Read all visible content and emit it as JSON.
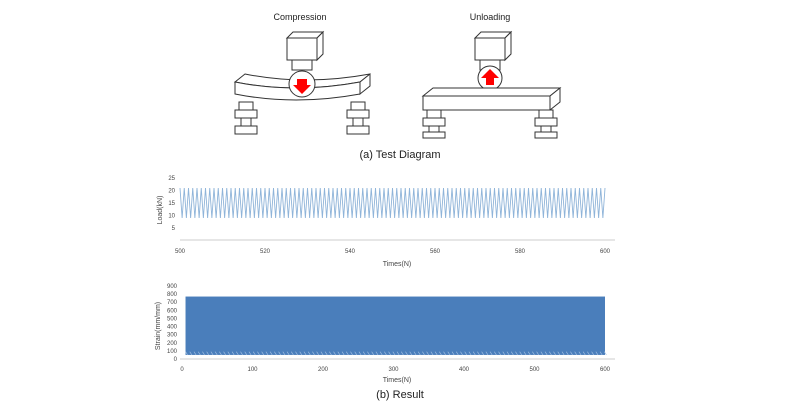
{
  "diagram": {
    "left_label": "Compression",
    "right_label": "Unloading",
    "caption": "(a) Test Diagram",
    "colors": {
      "arrow": "#ff0000",
      "outline": "#333333"
    }
  },
  "result_caption": "(b) Result",
  "chart_data": [
    {
      "type": "line",
      "ylabel": "Load(kN)",
      "xlabel": "Times(N)",
      "xlim": [
        500,
        600
      ],
      "ylim": [
        5,
        25
      ],
      "xticks": [
        500,
        520,
        540,
        560,
        580,
        600
      ],
      "yticks": [
        5,
        10,
        15,
        20,
        25
      ],
      "series": [
        {
          "cycles": 100,
          "min": 9,
          "max": 21,
          "color": "#8fb4d9"
        }
      ],
      "grid": false
    },
    {
      "type": "area",
      "ylabel": "Strain(mm/mm)",
      "xlabel": "Times(N)",
      "xlim": [
        0,
        600
      ],
      "ylim": [
        0,
        900
      ],
      "xticks": [
        0,
        100,
        200,
        300,
        400,
        500,
        600
      ],
      "yticks": [
        0,
        100,
        200,
        300,
        400,
        500,
        600,
        700,
        800,
        900
      ],
      "series": [
        {
          "min": 50,
          "max": 770,
          "color": "#4a7ebb"
        }
      ],
      "grid": false
    }
  ]
}
